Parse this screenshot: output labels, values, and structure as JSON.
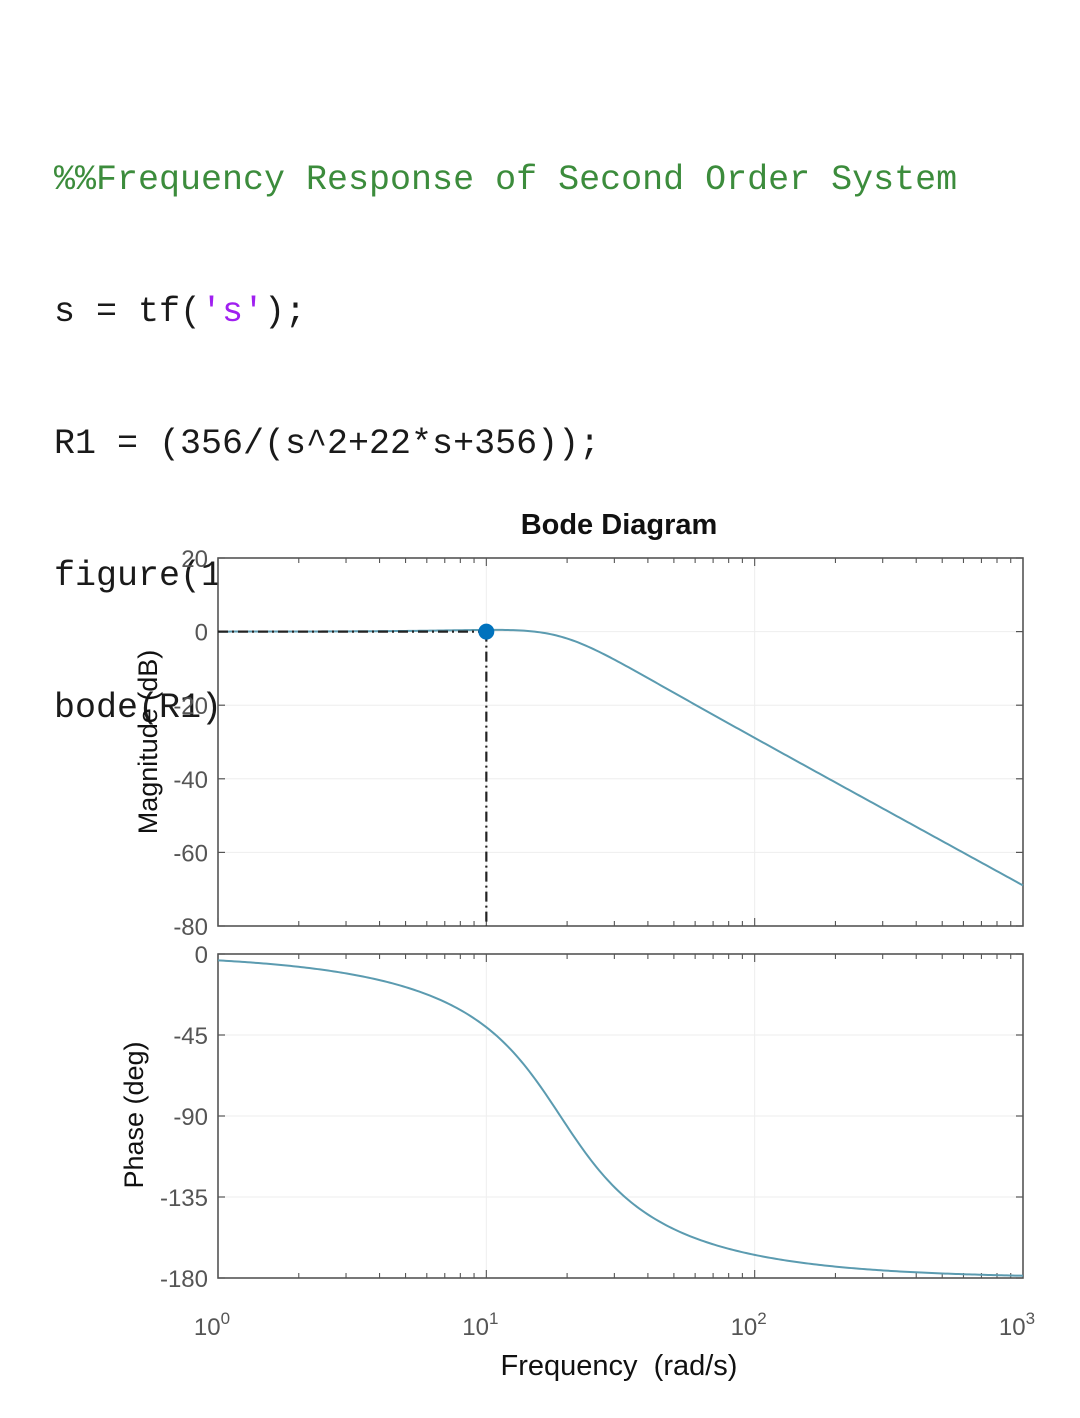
{
  "code": {
    "line1": "%%Frequency Response of Second Order System",
    "line2_a": "s = tf(",
    "line2_str": "'s'",
    "line2_b": ");",
    "line3": "R1 = (356/(s^2+22*s+356));",
    "line4": "figure(1);",
    "line5": "bode(R1);"
  },
  "chart_data": {
    "type": "line",
    "title": "Bode Diagram",
    "xlabel": "Frequency  (rad/s)",
    "xscale": "log",
    "xlim": [
      1,
      1000
    ],
    "x_ticks": [
      {
        "base": "10",
        "exp": "0"
      },
      {
        "base": "10",
        "exp": "1"
      },
      {
        "base": "10",
        "exp": "2"
      },
      {
        "base": "10",
        "exp": "3"
      }
    ],
    "transfer_function": {
      "numerator": [
        356
      ],
      "denominator": [
        1,
        22,
        356
      ]
    },
    "magnitude": {
      "ylabel": "Magnitude (dB)",
      "ylim": [
        -80,
        20
      ],
      "y_ticks": [
        20,
        0,
        -20,
        -40,
        -60,
        -80
      ],
      "x": [
        1,
        2,
        5,
        10,
        15,
        20,
        30,
        50,
        100,
        200,
        500,
        1000
      ],
      "y": [
        0.0,
        0.0,
        0.0,
        0.1,
        -1.6,
        -4.0,
        -8.9,
        -16.6,
        -29.0,
        -41.1,
        -57.0,
        -69.0
      ]
    },
    "phase": {
      "ylabel": "Phase (deg)",
      "ylim": [
        -180,
        0
      ],
      "y_ticks": [
        0,
        -45,
        -90,
        -135,
        -180
      ],
      "x": [
        1,
        2,
        5,
        10,
        15,
        20,
        30,
        50,
        100,
        200,
        500,
        1000
      ],
      "y": [
        -3.5,
        -7.1,
        -18.4,
        -43.5,
        -74.2,
        -99.0,
        -128.8,
        -150.2,
        -166.2,
        -173.1,
        -177.3,
        -178.7
      ]
    },
    "marker": {
      "x": 10,
      "y": 0
    },
    "colors": {
      "line": "#5b9bb0",
      "marker": "#0072bd",
      "axis": "#555555",
      "grid": "#eeeeee"
    }
  }
}
